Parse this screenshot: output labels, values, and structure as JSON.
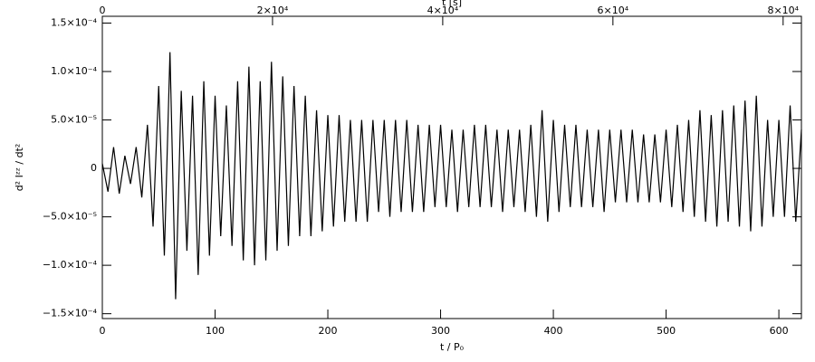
{
  "chart_data": {
    "type": "line",
    "xlabel": "t / P₀",
    "ylabel": "d² Iᶻᶻ / dt²",
    "x2label": "t [s]",
    "color": "#000000",
    "xlim": [
      0,
      620
    ],
    "xticks": [
      0,
      100,
      200,
      300,
      400,
      500,
      600
    ],
    "x2lim": [
      0,
      82150
    ],
    "x2ticks": [
      0,
      {
        "value": 20000,
        "label": "2×10⁴"
      },
      {
        "value": 40000,
        "label": "4×10⁴"
      },
      {
        "value": 60000,
        "label": "6×10⁴"
      },
      {
        "value": 80000,
        "label": "8×10⁴"
      }
    ],
    "ylim": [
      -0.000155,
      0.000157
    ],
    "yticks": [
      {
        "value": 0.00015,
        "label": "1.5×10⁻⁴"
      },
      {
        "value": 0.0001,
        "label": "1.0×10⁻⁴"
      },
      {
        "value": 5e-05,
        "label": "5.0×10⁻⁵"
      },
      0,
      {
        "value": -5e-05,
        "label": "−5.0×10⁻⁵"
      },
      {
        "value": -0.0001,
        "label": "−1.0×10⁻⁴"
      },
      {
        "value": -0.00015,
        "label": "−1.5×10⁻⁴"
      }
    ],
    "x": [
      0,
      5,
      10,
      15,
      20,
      25,
      30,
      35,
      40,
      45,
      50,
      55,
      60,
      65,
      70,
      75,
      80,
      85,
      90,
      95,
      100,
      105,
      110,
      115,
      120,
      125,
      130,
      135,
      140,
      145,
      150,
      155,
      160,
      165,
      170,
      175,
      180,
      185,
      190,
      195,
      200,
      205,
      210,
      215,
      220,
      225,
      230,
      235,
      240,
      245,
      250,
      255,
      260,
      265,
      270,
      275,
      280,
      285,
      290,
      295,
      300,
      305,
      310,
      315,
      320,
      325,
      330,
      335,
      340,
      345,
      350,
      355,
      360,
      365,
      370,
      375,
      380,
      385,
      390,
      395,
      400,
      405,
      410,
      415,
      420,
      425,
      430,
      435,
      440,
      445,
      450,
      455,
      460,
      465,
      470,
      475,
      480,
      485,
      490,
      495,
      500,
      505,
      510,
      515,
      520,
      525,
      530,
      535,
      540,
      545,
      550,
      555,
      560,
      565,
      570,
      575,
      580,
      585,
      590,
      595,
      600,
      605,
      610,
      615,
      620
    ],
    "values": [
      5e-06,
      -2.4e-05,
      2.2e-05,
      -2.6e-05,
      1.3e-05,
      -1.6e-05,
      2.2e-05,
      -3e-05,
      4.5e-05,
      -6e-05,
      8.5e-05,
      -9e-05,
      0.00012,
      -0.000135,
      8e-05,
      -8.5e-05,
      7.5e-05,
      -0.00011,
      9e-05,
      -9e-05,
      7.5e-05,
      -7e-05,
      6.5e-05,
      -8e-05,
      9e-05,
      -9.5e-05,
      0.000105,
      -0.0001,
      9e-05,
      -9.5e-05,
      0.00011,
      -8.5e-05,
      9.5e-05,
      -8e-05,
      8.5e-05,
      -7e-05,
      7.5e-05,
      -7e-05,
      6e-05,
      -6.5e-05,
      5.5e-05,
      -6e-05,
      5.5e-05,
      -5.5e-05,
      5e-05,
      -5.5e-05,
      5e-05,
      -5.5e-05,
      5e-05,
      -4.5e-05,
      5e-05,
      -5e-05,
      5e-05,
      -4.5e-05,
      5e-05,
      -4.5e-05,
      4.5e-05,
      -4.5e-05,
      4.5e-05,
      -4e-05,
      4.5e-05,
      -4e-05,
      4e-05,
      -4.5e-05,
      4e-05,
      -4e-05,
      4.5e-05,
      -4e-05,
      4.5e-05,
      -4e-05,
      4e-05,
      -4.5e-05,
      4e-05,
      -4e-05,
      4e-05,
      -4.5e-05,
      4.5e-05,
      -5e-05,
      6e-05,
      -5.5e-05,
      5e-05,
      -4.5e-05,
      4.5e-05,
      -4e-05,
      4.5e-05,
      -4e-05,
      4e-05,
      -4e-05,
      4e-05,
      -4.5e-05,
      4e-05,
      -3.5e-05,
      4e-05,
      -3.5e-05,
      4e-05,
      -3.5e-05,
      3.5e-05,
      -3.5e-05,
      3.5e-05,
      -3.5e-05,
      4e-05,
      -4e-05,
      4.5e-05,
      -4.5e-05,
      5e-05,
      -5e-05,
      6e-05,
      -5.5e-05,
      5.5e-05,
      -6e-05,
      6e-05,
      -5.5e-05,
      6.5e-05,
      -6e-05,
      7e-05,
      -6.5e-05,
      7.5e-05,
      -6e-05,
      5e-05,
      -5e-05,
      5e-05,
      -5e-05,
      6.5e-05,
      -5.5e-05,
      4e-05
    ]
  }
}
